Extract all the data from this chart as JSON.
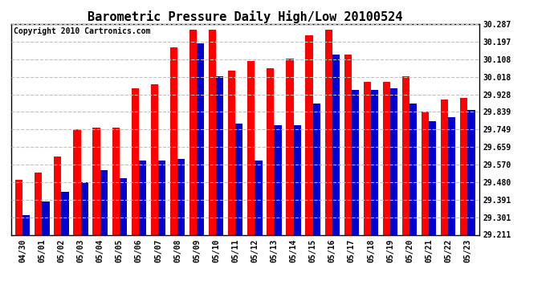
{
  "title": "Barometric Pressure Daily High/Low 20100524",
  "copyright": "Copyright 2010 Cartronics.com",
  "dates": [
    "04/30",
    "05/01",
    "05/02",
    "05/03",
    "05/04",
    "05/05",
    "05/06",
    "05/07",
    "05/08",
    "05/09",
    "05/10",
    "05/11",
    "05/12",
    "05/13",
    "05/14",
    "05/15",
    "05/16",
    "05/17",
    "05/18",
    "05/19",
    "05/20",
    "05/21",
    "05/22",
    "05/23"
  ],
  "highs": [
    29.49,
    29.53,
    29.61,
    29.75,
    29.76,
    29.76,
    29.96,
    29.98,
    30.17,
    30.26,
    30.26,
    30.05,
    30.1,
    30.06,
    30.11,
    30.23,
    30.26,
    30.13,
    29.99,
    29.99,
    30.02,
    29.84,
    29.9,
    29.91
  ],
  "lows": [
    29.31,
    29.38,
    29.43,
    29.48,
    29.54,
    29.5,
    29.59,
    29.59,
    29.6,
    30.19,
    30.02,
    29.78,
    29.59,
    29.77,
    29.77,
    29.88,
    30.13,
    29.95,
    29.95,
    29.96,
    29.88,
    29.79,
    29.81,
    29.85
  ],
  "high_color": "#ff0000",
  "low_color": "#0000cc",
  "ylim_min": 29.211,
  "ylim_max": 30.287,
  "yticks": [
    29.211,
    29.301,
    29.391,
    29.48,
    29.57,
    29.659,
    29.749,
    29.839,
    29.928,
    30.018,
    30.108,
    30.197,
    30.287
  ],
  "bg_color": "#ffffff",
  "grid_color": "#c0c0c0",
  "title_fontsize": 11,
  "tick_fontsize": 7,
  "copyright_fontsize": 7
}
